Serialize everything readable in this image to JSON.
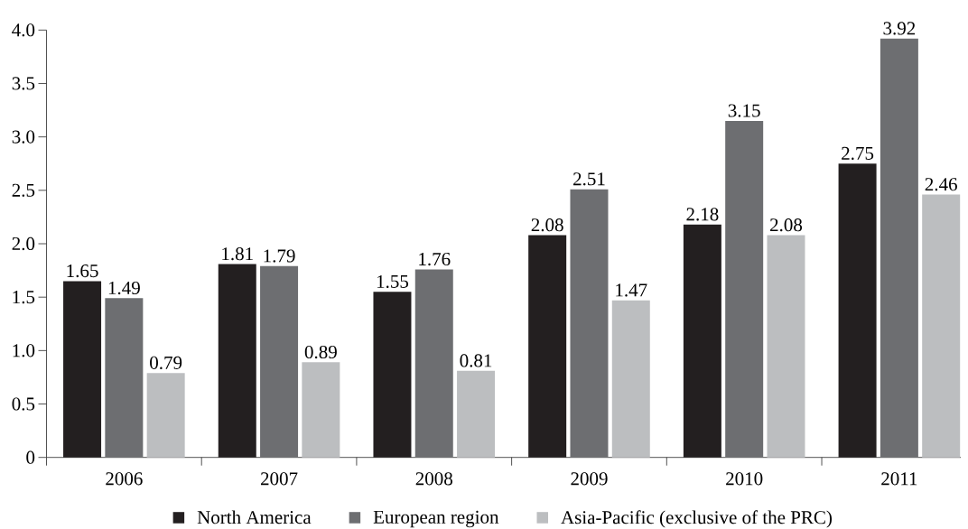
{
  "chart_data": {
    "type": "bar",
    "categories": [
      "2006",
      "2007",
      "2008",
      "2009",
      "2010",
      "2011"
    ],
    "series": [
      {
        "name": "North America",
        "color": "#231f20",
        "values": [
          1.65,
          1.81,
          1.55,
          2.08,
          2.18,
          2.75
        ]
      },
      {
        "name": "European region",
        "color": "#6d6e71",
        "values": [
          1.49,
          1.79,
          1.76,
          2.51,
          3.15,
          3.92
        ]
      },
      {
        "name": "Asia-Pacific (exclusive of the PRC)",
        "color": "#bcbec0",
        "values": [
          0.79,
          0.89,
          0.81,
          1.47,
          2.08,
          2.46
        ]
      }
    ],
    "ylim": [
      0,
      4
    ],
    "yticks": [
      0,
      0.5,
      {
        "value": 1,
        "label": "1.0"
      },
      1.5,
      {
        "value": 2,
        "label": "2.0"
      },
      2.5,
      {
        "value": 3,
        "label": "3.0"
      },
      3.5,
      {
        "value": 4,
        "label": "4.0"
      }
    ],
    "data_labels": true,
    "legend": "bottom",
    "grid": false
  }
}
